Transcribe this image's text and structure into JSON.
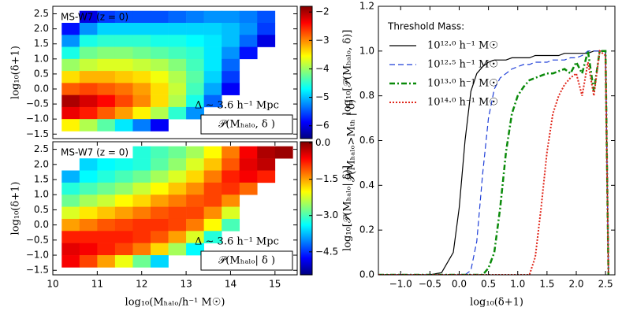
{
  "chart_data": [
    {
      "type": "heatmap",
      "title": "MS-W7 (z = 0)",
      "annotation": "Δ ∼ 3.6 h⁻¹ Mpc",
      "label": "𝒫(Mₕₐₗₒ, δ )",
      "ylabel": "log₁₀(δ+1)",
      "clabel": "log₁₀[𝒫(Mₕₐₗₒ, δ)]",
      "colormap": "jet",
      "xlim": [
        10,
        15.5
      ],
      "ylim": [
        -1.65,
        2.75
      ],
      "yticks": [
        {
          "value": -1.5,
          "label": "−1.5"
        },
        {
          "value": -1.0,
          "label": "−1.0"
        },
        {
          "value": -0.5,
          "label": "−0.5"
        },
        {
          "value": 0.0,
          "label": "0.0"
        },
        {
          "value": 0.5,
          "label": "0.5"
        },
        {
          "value": 1.0,
          "label": "1.0"
        },
        {
          "value": 1.5,
          "label": "1.5"
        },
        {
          "value": 2.0,
          "label": "2.0"
        },
        {
          "value": 2.5,
          "label": "2.5"
        }
      ],
      "clim": [
        -6.45,
        -1.8
      ],
      "cticks": [
        {
          "value": -6,
          "label": "−6"
        },
        {
          "value": -5,
          "label": "−5"
        },
        {
          "value": -4,
          "label": "−4"
        },
        {
          "value": -3,
          "label": "−3"
        },
        {
          "value": -2,
          "label": "−2"
        }
      ],
      "xbins": [
        10.2,
        10.6,
        11.0,
        11.4,
        11.8,
        12.2,
        12.6,
        13.0,
        13.4,
        13.8,
        14.2,
        14.6,
        15.0,
        15.4
      ],
      "ybins": [
        2.6,
        2.2,
        1.8,
        1.4,
        1.0,
        0.6,
        0.2,
        -0.2,
        -0.6,
        -1.0,
        -1.4
      ],
      "z": [
        [
          null,
          -6,
          -5.6,
          -5.5,
          -5.5,
          -5.5,
          -5.4,
          -5.3,
          -5.2,
          -5.2,
          -5.3,
          -5.5,
          null
        ],
        [
          -5.8,
          -5.2,
          -4.9,
          -4.9,
          -4.9,
          -4.9,
          -4.9,
          -4.9,
          -4.9,
          -5,
          -5.2,
          -5.6,
          null
        ],
        [
          -5.2,
          -4.6,
          -4.5,
          -4.5,
          -4.5,
          -4.6,
          -4.6,
          -4.7,
          -4.8,
          -5,
          -5.4,
          -6,
          null
        ],
        [
          -4.6,
          -4.2,
          -4.1,
          -4.1,
          -4.2,
          -4.3,
          -4.4,
          -4.5,
          -4.8,
          -5.2,
          -5.8,
          null,
          null
        ],
        [
          -4.0,
          -3.8,
          -3.7,
          -3.7,
          -3.8,
          -3.9,
          -4.1,
          -4.4,
          -4.8,
          -5.4,
          null,
          null,
          null
        ],
        [
          -3.4,
          -3.2,
          -3.2,
          -3.3,
          -3.4,
          -3.6,
          -3.9,
          -4.3,
          -4.9,
          -5.6,
          null,
          null,
          null
        ],
        [
          -2.8,
          -2.7,
          -2.8,
          -2.9,
          -3.1,
          -3.4,
          -3.8,
          -4.4,
          -5.1,
          -5.9,
          null,
          null,
          null
        ],
        [
          -2.0,
          -2.2,
          -2.4,
          -2.7,
          -3.0,
          -3.4,
          -3.9,
          -4.6,
          -5.4,
          null,
          null,
          null,
          null
        ],
        [
          -2.3,
          -2.5,
          -2.8,
          -3.1,
          -3.5,
          -3.9,
          -4.5,
          -5.2,
          null,
          null,
          null,
          null,
          null
        ],
        [
          -3.5,
          -3.9,
          -4.3,
          -4.8,
          -5.3,
          -5.9,
          null,
          null,
          null,
          null,
          null,
          null,
          null
        ]
      ]
    },
    {
      "type": "heatmap",
      "title": "MS-W7 (z = 0)",
      "annotation": "Δ ∼ 3.6 h⁻¹ Mpc",
      "label": "𝒫(Mₕₐₗₒ| δ )",
      "ylabel": "log₁₀(δ+1)",
      "xlabel": "log₁₀(Mₕₐₗₒ/h⁻¹ M☉)",
      "clabel": "log₁₀[𝒫(Mₕₐₗₒ| δ)]",
      "colormap": "jet",
      "xlim": [
        10,
        15.5
      ],
      "ylim": [
        -1.65,
        2.75
      ],
      "xticks": [
        10,
        11,
        12,
        13,
        14,
        15
      ],
      "yticks": [
        {
          "value": -1.5,
          "label": "−1.5"
        },
        {
          "value": -1.0,
          "label": "−1.0"
        },
        {
          "value": -0.5,
          "label": "−0.5"
        },
        {
          "value": 0.0,
          "label": "0.0"
        },
        {
          "value": 0.5,
          "label": "0.5"
        },
        {
          "value": 1.0,
          "label": "1.0"
        },
        {
          "value": 1.5,
          "label": "1.5"
        },
        {
          "value": 2.0,
          "label": "2.0"
        },
        {
          "value": 2.5,
          "label": "2.5"
        }
      ],
      "clim": [
        -5.45,
        0.05
      ],
      "cticks": [
        {
          "value": -4.5,
          "label": "−4.5"
        },
        {
          "value": -3.0,
          "label": "−3.0"
        },
        {
          "value": -1.5,
          "label": "−1.5"
        },
        {
          "value": 0.0,
          "label": "0.0"
        }
      ],
      "xbins": [
        10.2,
        10.6,
        11.0,
        11.4,
        11.8,
        12.2,
        12.6,
        13.0,
        13.4,
        13.8,
        14.2,
        14.6,
        15.0,
        15.4
      ],
      "ybins": [
        2.6,
        2.2,
        1.8,
        1.4,
        1.0,
        0.6,
        0.2,
        -0.2,
        -0.6,
        -1.0,
        -1.4
      ],
      "z": [
        [
          null,
          null,
          null,
          null,
          -3.2,
          -3.0,
          -2.8,
          -2.5,
          -2.0,
          -1.3,
          -0.6,
          -0.2,
          -0.1
        ],
        [
          null,
          -3.6,
          -3.4,
          -3.3,
          -3.2,
          -2.9,
          -2.6,
          -2.2,
          -1.7,
          -1.1,
          -0.5,
          -0.3,
          null
        ],
        [
          -3.8,
          -3.4,
          -3.2,
          -3.0,
          -2.8,
          -2.5,
          -2.2,
          -1.8,
          -1.3,
          -0.8,
          -0.6,
          -0.8,
          null
        ],
        [
          -3.2,
          -3.0,
          -2.8,
          -2.6,
          -2.3,
          -2.0,
          -1.7,
          -1.4,
          -1.0,
          -0.9,
          -1.2,
          null,
          null
        ],
        [
          -2.8,
          -2.5,
          -2.3,
          -2.0,
          -1.8,
          -1.5,
          -1.3,
          -1.1,
          -1.0,
          -1.4,
          null,
          null,
          null
        ],
        [
          -2.2,
          -1.9,
          -1.7,
          -1.5,
          -1.3,
          -1.1,
          -1.0,
          -1.0,
          -1.4,
          -2.2,
          null,
          null,
          null
        ],
        [
          -1.5,
          -1.3,
          -1.1,
          -1.0,
          -0.9,
          -0.9,
          -1.0,
          -1.3,
          -2.0,
          -3,
          null,
          null,
          null
        ],
        [
          -0.8,
          -0.8,
          -0.8,
          -0.8,
          -0.9,
          -1.1,
          -1.5,
          -2.2,
          -3.2,
          null,
          null,
          null,
          null
        ],
        [
          -0.5,
          -0.6,
          -0.8,
          -1.0,
          -1.3,
          -1.8,
          -2.5,
          -3.4,
          null,
          null,
          null,
          null,
          null
        ],
        [
          -0.6,
          -1.0,
          -1.5,
          -2.1,
          -2.8,
          -3.6,
          null,
          null,
          null,
          null,
          null,
          null,
          null
        ]
      ]
    },
    {
      "type": "line",
      "legend_title": "Threshold Mass:",
      "legend": "upper left",
      "xlabel": "log₁₀(δ+1)",
      "ylabel": "𝒫(Mₕₐₗₒ>Mₜₕ | δ)",
      "xlim": [
        -1.38,
        2.66
      ],
      "ylim": [
        0,
        1.2
      ],
      "xticks": [
        {
          "value": -1.0,
          "label": "−1.0"
        },
        {
          "value": -0.5,
          "label": "−0.5"
        },
        {
          "value": 0.0,
          "label": "0.0"
        },
        {
          "value": 0.5,
          "label": "0.5"
        },
        {
          "value": 1.0,
          "label": "1.0"
        },
        {
          "value": 1.5,
          "label": "1.5"
        },
        {
          "value": 2.0,
          "label": "2.0"
        },
        {
          "value": 2.5,
          "label": "2.5"
        }
      ],
      "yticks": [
        {
          "value": 0.0,
          "label": "0.0"
        },
        {
          "value": 0.2,
          "label": "0.2"
        },
        {
          "value": 0.4,
          "label": "0.4"
        },
        {
          "value": 0.6,
          "label": "0.6"
        },
        {
          "value": 0.8,
          "label": "0.8"
        },
        {
          "value": 1.0,
          "label": "1.0"
        },
        {
          "value": 1.2,
          "label": "1.2"
        }
      ],
      "x": [
        -1.38,
        -0.5,
        -0.3,
        -0.1,
        0.0,
        0.1,
        0.2,
        0.3,
        0.4,
        0.5,
        0.6,
        0.7,
        0.8,
        0.9,
        1.0,
        1.1,
        1.2,
        1.3,
        1.4,
        1.5,
        1.6,
        1.7,
        1.8,
        1.9,
        2.0,
        2.1,
        2.2,
        2.3,
        2.4,
        2.5,
        2.55
      ],
      "series": [
        {
          "name": "10¹²·⁰ h⁻¹ M☉",
          "color": "#000000",
          "dash": "solid",
          "values": [
            0,
            0,
            0.01,
            0.1,
            0.3,
            0.6,
            0.82,
            0.9,
            0.93,
            0.95,
            0.96,
            0.96,
            0.96,
            0.97,
            0.97,
            0.97,
            0.97,
            0.98,
            0.98,
            0.98,
            0.98,
            0.98,
            0.99,
            0.99,
            0.99,
            0.99,
            0.99,
            1.0,
            1.0,
            1.0,
            0
          ]
        },
        {
          "name": "10¹²·⁵ h⁻¹ M☉",
          "color": "#1f3fd8",
          "dash": "dashed",
          "values": [
            0,
            0,
            0,
            0,
            0,
            0,
            0.02,
            0.15,
            0.45,
            0.7,
            0.83,
            0.88,
            0.9,
            0.92,
            0.93,
            0.94,
            0.94,
            0.95,
            0.95,
            0.95,
            0.96,
            0.96,
            0.96,
            0.97,
            0.97,
            0.98,
            1.0,
            1.0,
            1.0,
            1.0,
            0
          ]
        },
        {
          "name": "10¹³·⁰ h⁻¹ M☉",
          "color": "#0a8a0a",
          "dash": "dashdot",
          "values": [
            0,
            0,
            0,
            0,
            0,
            0,
            0,
            0,
            0,
            0.03,
            0.1,
            0.3,
            0.55,
            0.72,
            0.8,
            0.84,
            0.87,
            0.88,
            0.89,
            0.9,
            0.9,
            0.91,
            0.92,
            0.9,
            0.95,
            0.9,
            1.0,
            0.82,
            1.0,
            1.0,
            0
          ]
        },
        {
          "name": "10¹⁴·⁰ h⁻¹ M☉",
          "color": "#e0261a",
          "dash": "dotted",
          "values": [
            0,
            0,
            0,
            0,
            0,
            0,
            0,
            0,
            0,
            0,
            0,
            0,
            0,
            0,
            0,
            0,
            0,
            0.08,
            0.3,
            0.55,
            0.72,
            0.8,
            0.85,
            0.88,
            0.9,
            0.8,
            0.95,
            0.8,
            1.0,
            0.98,
            0
          ]
        }
      ]
    }
  ]
}
